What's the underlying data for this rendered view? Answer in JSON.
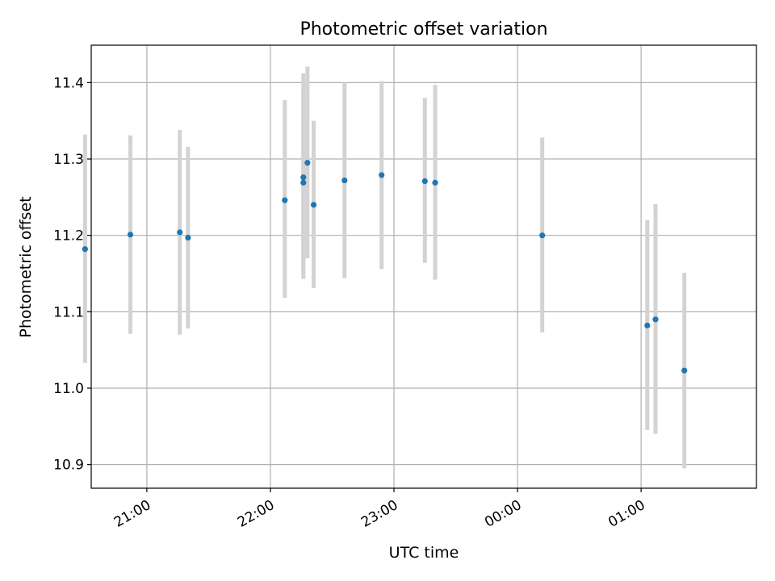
{
  "chart_data": {
    "type": "scatter",
    "title": "Photometric offset variation",
    "xlabel": "UTC time",
    "ylabel": "Photometric offset",
    "x_unit": "UTC time (HH:MM), wrapping past midnight",
    "xlim": [
      "20:33",
      "01:56"
    ],
    "ylim": [
      10.869,
      11.449
    ],
    "x_ticks": [
      "21:00",
      "22:00",
      "23:00",
      "00:00",
      "01:00"
    ],
    "y_ticks": [
      "10.9",
      "11.0",
      "11.1",
      "11.2",
      "11.3",
      "11.4"
    ],
    "grid": true,
    "errorbar_color": "#d3d3d3",
    "marker_color": "#1f77b4",
    "series": [
      {
        "x": [
          "20:30",
          "20:52",
          "21:16",
          "21:20",
          "22:07",
          "22:16",
          "22:16",
          "22:18",
          "22:21",
          "22:36",
          "22:54",
          "23:15",
          "23:20",
          "00:12",
          "01:03",
          "01:07",
          "01:21"
        ],
        "y": [
          11.182,
          11.201,
          11.204,
          11.197,
          11.246,
          11.269,
          11.276,
          11.295,
          11.24,
          11.272,
          11.279,
          11.271,
          11.269,
          11.2,
          11.082,
          11.09,
          11.023
        ],
        "yerr_low": [
          11.033,
          11.071,
          11.07,
          11.078,
          11.118,
          11.15,
          11.143,
          11.17,
          11.131,
          11.144,
          11.156,
          11.164,
          11.142,
          11.073,
          10.945,
          10.94,
          10.895
        ],
        "yerr_high": [
          11.332,
          11.331,
          11.338,
          11.316,
          11.377,
          11.389,
          11.412,
          11.421,
          11.35,
          11.4,
          11.402,
          11.38,
          11.397,
          11.328,
          11.22,
          11.241,
          11.151
        ]
      }
    ]
  }
}
